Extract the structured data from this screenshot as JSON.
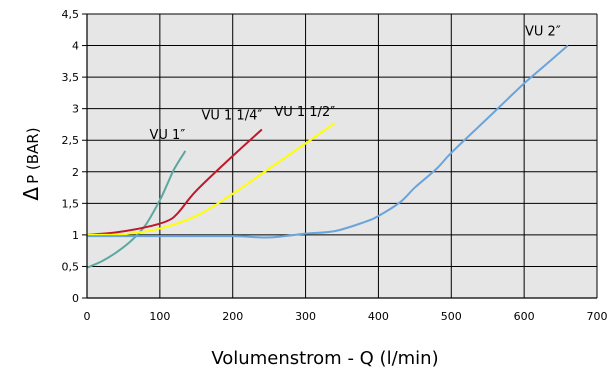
{
  "chart_data": {
    "type": "line",
    "xlabel": "Volumenstrom - Q (l/min)",
    "ylabel": "P (BAR)",
    "ylabel_symbol": "Δ",
    "xlim": [
      0,
      700
    ],
    "ylim": [
      0,
      4.5
    ],
    "x_ticks": [
      "0",
      "100",
      "200",
      "300",
      "400",
      "500",
      "600",
      "700"
    ],
    "y_ticks": [
      "0",
      "0,5",
      "1",
      "1,5",
      "2",
      "2,5",
      "3",
      "3,5",
      "4",
      "4,5"
    ],
    "grid": true,
    "plot_background": "#e6e6e6",
    "series": [
      {
        "name": "VU 1″",
        "color": "#5aa89e",
        "x": [
          0,
          20,
          40,
          60,
          80,
          100,
          110,
          120,
          135
        ],
        "y": [
          0.48,
          0.58,
          0.72,
          0.9,
          1.15,
          1.55,
          1.8,
          2.05,
          2.33
        ]
      },
      {
        "name": "VU 1 1/4″",
        "color": "#c0182a",
        "x": [
          0,
          40,
          80,
          110,
          125,
          150,
          200,
          240
        ],
        "y": [
          1.0,
          1.04,
          1.12,
          1.22,
          1.35,
          1.7,
          2.25,
          2.67
        ]
      },
      {
        "name": "VU 1 1/2″",
        "color": "#ffff00",
        "x": [
          0,
          50,
          100,
          150,
          200,
          250,
          300,
          340
        ],
        "y": [
          1.0,
          1.01,
          1.1,
          1.3,
          1.65,
          2.05,
          2.45,
          2.77
        ]
      },
      {
        "name": "VU 2″",
        "color": "#6aa4dc",
        "x": [
          0,
          100,
          200,
          250,
          300,
          340,
          380,
          400,
          430,
          450,
          480,
          500,
          550,
          600,
          630,
          660
        ],
        "y": [
          0.98,
          0.98,
          0.98,
          0.96,
          1.02,
          1.06,
          1.2,
          1.3,
          1.52,
          1.75,
          2.05,
          2.3,
          2.85,
          3.4,
          3.7,
          4.0
        ]
      }
    ]
  }
}
